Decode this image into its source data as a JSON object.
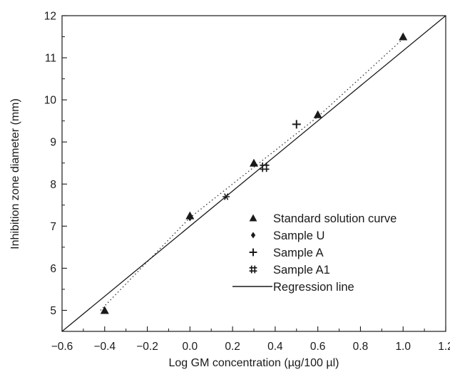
{
  "chart_data": {
    "type": "scatter",
    "xlabel": "Log GM concentration (µg/100 µl)",
    "ylabel": "Inhibition zone diameter (mm)",
    "xlim": [
      -0.6,
      1.2
    ],
    "ylim": [
      4.5,
      12
    ],
    "x_ticks": [
      "−0.6",
      "−0.4",
      "−0.2",
      "0.0",
      "0.2",
      "0.4",
      "0.6",
      "0.8",
      "1.0",
      "1.2"
    ],
    "y_ticks": [
      "5",
      "6",
      "7",
      "8",
      "9",
      "10",
      "11",
      "12"
    ],
    "grid": false,
    "legend_position": "bottom-right",
    "series": [
      {
        "name": "Standard solution curve",
        "marker": "triangle",
        "points": [
          [
            -0.4,
            5.0
          ],
          [
            0.0,
            7.25
          ],
          [
            0.3,
            8.5
          ],
          [
            0.6,
            9.65
          ],
          [
            1.0,
            11.5
          ]
        ]
      },
      {
        "name": "Sample U",
        "marker": "diamond",
        "points": [
          [
            0.0,
            7.2
          ]
        ]
      },
      {
        "name": "Sample A",
        "marker": "plus",
        "points": [
          [
            0.5,
            9.42
          ]
        ]
      },
      {
        "name": "Sample A1",
        "marker": "hash",
        "points": [
          [
            0.35,
            8.4
          ]
        ]
      }
    ],
    "regression_line": {
      "name": "Regression line",
      "points": [
        [
          -0.6,
          4.5
        ],
        [
          1.2,
          12.0
        ]
      ]
    },
    "dotted_fit": {
      "points": [
        [
          -0.42,
          5.0
        ],
        [
          0.0,
          7.2
        ],
        [
          0.3,
          8.4
        ],
        [
          0.6,
          9.6
        ],
        [
          1.0,
          11.45
        ]
      ]
    },
    "extra_marks": [
      {
        "marker": "star",
        "points": [
          [
            0.17,
            7.7
          ]
        ]
      }
    ]
  }
}
